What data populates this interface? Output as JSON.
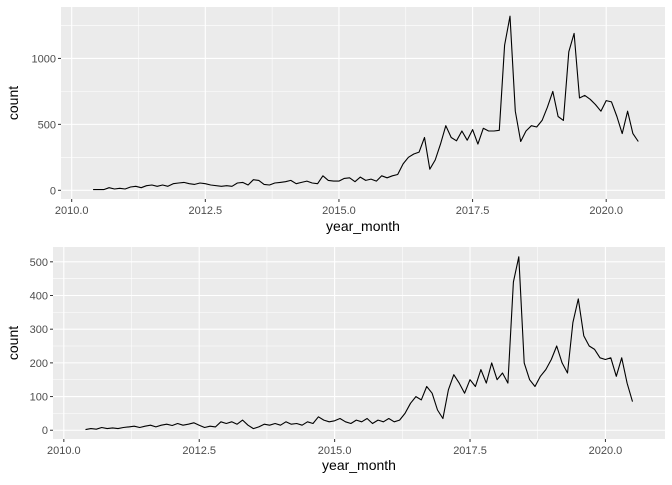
{
  "chart_data": [
    {
      "type": "line",
      "xlabel": "year_month",
      "ylabel": "count",
      "xlim": [
        2009.8,
        2021.1
      ],
      "ylim": [
        -66,
        1390
      ],
      "xticks": [
        2010.0,
        2012.5,
        2015.0,
        2017.5,
        2020.0
      ],
      "xtick_labels": [
        "2010.0",
        "2012.5",
        "2015.0",
        "2017.5",
        "2020.0"
      ],
      "yticks": [
        0,
        500,
        1000
      ],
      "ytick_labels": [
        "0",
        "500",
        "1000"
      ],
      "grid": true,
      "background": "#ebebeb",
      "line_color": "#000000",
      "series": [
        {
          "x": [
            2010.4,
            2010.6,
            2010.7,
            2010.8,
            2010.9,
            2011.0,
            2011.1,
            2011.2,
            2011.3,
            2011.4,
            2011.5,
            2011.6,
            2011.7,
            2011.8,
            2011.9,
            2012.0,
            2012.1,
            2012.2,
            2012.3,
            2012.4,
            2012.5,
            2012.6,
            2012.8,
            2012.9,
            2013.0,
            2013.1,
            2013.2,
            2013.3,
            2013.4,
            2013.5,
            2013.6,
            2013.7,
            2013.8,
            2013.9,
            2014.0,
            2014.1,
            2014.2,
            2014.3,
            2014.4,
            2014.5,
            2014.6,
            2014.7,
            2014.8,
            2014.9,
            2015.0,
            2015.1,
            2015.2,
            2015.3,
            2015.4,
            2015.5,
            2015.6,
            2015.7,
            2015.8,
            2015.9,
            2016.0,
            2016.1,
            2016.2,
            2016.3,
            2016.4,
            2016.5,
            2016.6,
            2016.7,
            2016.8,
            2016.9,
            2017.0,
            2017.1,
            2017.2,
            2017.3,
            2017.4,
            2017.5,
            2017.6,
            2017.7,
            2017.8,
            2017.9,
            2018.0,
            2018.1,
            2018.2,
            2018.3,
            2018.4,
            2018.5,
            2018.6,
            2018.7,
            2018.8,
            2018.9,
            2019.0,
            2019.1,
            2019.2,
            2019.3,
            2019.4,
            2019.5,
            2019.6,
            2019.7,
            2019.8,
            2019.9,
            2020.0,
            2020.1,
            2020.2,
            2020.3,
            2020.4,
            2020.5,
            2020.6
          ],
          "y": [
            5,
            5,
            20,
            10,
            15,
            10,
            25,
            30,
            20,
            35,
            40,
            30,
            40,
            30,
            50,
            55,
            60,
            50,
            45,
            55,
            50,
            40,
            30,
            35,
            30,
            55,
            60,
            40,
            80,
            75,
            45,
            40,
            55,
            60,
            65,
            75,
            50,
            60,
            70,
            55,
            50,
            110,
            75,
            70,
            70,
            90,
            95,
            65,
            100,
            75,
            85,
            70,
            110,
            95,
            110,
            120,
            200,
            250,
            275,
            290,
            400,
            160,
            230,
            350,
            490,
            400,
            375,
            450,
            380,
            460,
            350,
            470,
            450,
            450,
            455,
            1100,
            1320,
            600,
            370,
            450,
            490,
            480,
            530,
            630,
            750,
            560,
            530,
            1050,
            1190,
            700,
            720,
            690,
            650,
            600,
            680,
            670,
            560,
            430,
            600,
            430,
            370
          ]
        }
      ]
    },
    {
      "type": "line",
      "xlabel": "year_month",
      "ylabel": "count",
      "xlim": [
        2009.8,
        2021.1
      ],
      "ylim": [
        -26,
        544
      ],
      "xticks": [
        2010.0,
        2012.5,
        2015.0,
        2017.5,
        2020.0
      ],
      "xtick_labels": [
        "2010.0",
        "2012.5",
        "2015.0",
        "2017.5",
        "2020.0"
      ],
      "yticks": [
        0,
        100,
        200,
        300,
        400,
        500
      ],
      "ytick_labels": [
        "0",
        "100",
        "200",
        "300",
        "400",
        "500"
      ],
      "grid": true,
      "background": "#ebebeb",
      "line_color": "#000000",
      "series": [
        {
          "x": [
            2010.4,
            2010.5,
            2010.6,
            2010.7,
            2010.8,
            2010.9,
            2011.0,
            2011.1,
            2011.2,
            2011.3,
            2011.4,
            2011.5,
            2011.6,
            2011.7,
            2011.8,
            2011.9,
            2012.0,
            2012.1,
            2012.2,
            2012.3,
            2012.4,
            2012.5,
            2012.6,
            2012.7,
            2012.8,
            2012.9,
            2013.0,
            2013.1,
            2013.2,
            2013.3,
            2013.4,
            2013.5,
            2013.6,
            2013.7,
            2013.8,
            2013.9,
            2014.0,
            2014.1,
            2014.2,
            2014.3,
            2014.4,
            2014.5,
            2014.6,
            2014.7,
            2014.8,
            2014.9,
            2015.0,
            2015.1,
            2015.2,
            2015.3,
            2015.4,
            2015.5,
            2015.6,
            2015.7,
            2015.8,
            2015.9,
            2016.0,
            2016.1,
            2016.2,
            2016.3,
            2016.4,
            2016.5,
            2016.6,
            2016.7,
            2016.8,
            2016.9,
            2017.0,
            2017.1,
            2017.2,
            2017.3,
            2017.4,
            2017.5,
            2017.6,
            2017.7,
            2017.8,
            2017.9,
            2018.0,
            2018.1,
            2018.2,
            2018.3,
            2018.4,
            2018.5,
            2018.6,
            2018.7,
            2018.8,
            2018.9,
            2019.0,
            2019.1,
            2019.2,
            2019.3,
            2019.4,
            2019.5,
            2019.6,
            2019.7,
            2019.8,
            2019.9,
            2020.0,
            2020.1,
            2020.2,
            2020.3,
            2020.4,
            2020.5
          ],
          "y": [
            2,
            5,
            3,
            8,
            5,
            7,
            5,
            8,
            10,
            12,
            8,
            12,
            15,
            10,
            15,
            18,
            14,
            20,
            15,
            18,
            22,
            15,
            8,
            12,
            10,
            25,
            20,
            25,
            18,
            30,
            15,
            5,
            10,
            18,
            15,
            20,
            15,
            25,
            18,
            20,
            15,
            25,
            20,
            40,
            30,
            25,
            28,
            35,
            25,
            20,
            30,
            25,
            35,
            20,
            30,
            25,
            35,
            25,
            30,
            50,
            80,
            100,
            90,
            130,
            110,
            60,
            35,
            120,
            165,
            140,
            110,
            150,
            130,
            180,
            140,
            200,
            150,
            170,
            140,
            440,
            515,
            200,
            150,
            130,
            160,
            180,
            210,
            250,
            200,
            170,
            320,
            390,
            280,
            250,
            240,
            215,
            210,
            215,
            160,
            215,
            140,
            85
          ]
        }
      ]
    }
  ]
}
